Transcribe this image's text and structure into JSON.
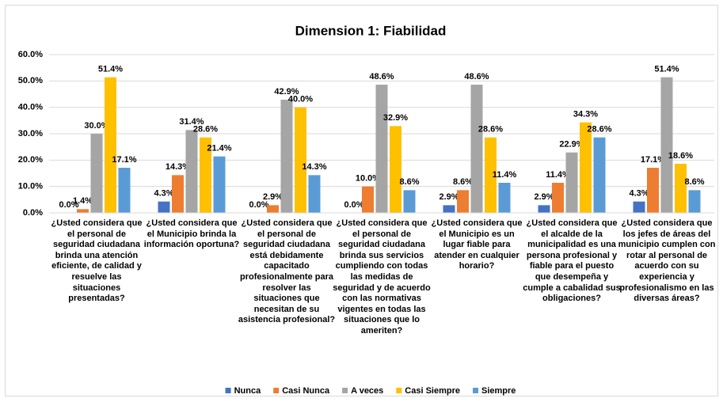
{
  "chart_data": {
    "type": "bar",
    "title": "Dimension 1: Fiabilidad",
    "categories": [
      "¿Usted considera que el personal de seguridad ciudadana brinda una atención eficiente, de calidad y resuelve las situaciones presentadas?",
      "¿Usted considera que el Municipio brinda la información oportuna?",
      "¿Usted considera que el personal de seguridad ciudadana está debidamente capacitado profesionalmente para resolver las situaciones que necesitan de su asistencia profesional?",
      "¿Usted considera que el personal de seguridad ciudadana brinda sus servicios cumpliendo con todas las medidas de seguridad y de acuerdo con las normativas vigentes en todas las situaciones que lo ameriten?",
      "¿Usted considera que el Municipio es un lugar fiable para atender en cualquier horario?",
      "¿Usted considera que el alcalde de la municipalidad es una persona profesional y fiable para el puesto que desempeña y cumple a cabalidad sus obligaciones?",
      "¿Usted considera que los jefes de áreas del municipio cumplen con rotar al personal de acuerdo con su experiencia y profesionalismo en las diversas áreas?"
    ],
    "series": [
      {
        "name": "Nunca",
        "color": "#4472c4",
        "values": [
          0.0,
          4.3,
          0.0,
          0.0,
          2.9,
          2.9,
          4.3
        ],
        "value_labels": [
          "0.0%",
          "4.3%",
          "0.0%",
          "0.0%",
          "2.9%",
          "2.9%",
          "4.3%"
        ]
      },
      {
        "name": "Casi Nunca",
        "color": "#ed7d31",
        "values": [
          1.4,
          14.3,
          2.9,
          10.0,
          8.6,
          11.4,
          17.1
        ],
        "value_labels": [
          "1.4%",
          "14.3%",
          "2.9%",
          "10.0%",
          "8.6%",
          "11.4%",
          "17.1%"
        ]
      },
      {
        "name": "A veces",
        "color": "#a5a5a5",
        "values": [
          30.0,
          31.4,
          42.9,
          48.6,
          48.6,
          22.9,
          51.4
        ],
        "value_labels": [
          "30.0%",
          "31.4%",
          "42.9%",
          "48.6%",
          "48.6%",
          "22.9%",
          "51.4%"
        ]
      },
      {
        "name": "Casi Siempre",
        "color": "#ffc000",
        "values": [
          51.4,
          28.6,
          40.0,
          32.9,
          28.6,
          34.3,
          18.6
        ],
        "value_labels": [
          "51.4%",
          "28.6%",
          "40.0%",
          "32.9%",
          "28.6%",
          "34.3%",
          "18.6%"
        ]
      },
      {
        "name": "Siempre",
        "color": "#5b9bd5",
        "values": [
          17.1,
          21.4,
          14.3,
          8.6,
          11.4,
          28.6,
          8.6
        ],
        "value_labels": [
          "17.1%",
          "21.4%",
          "14.3%",
          "8.6%",
          "11.4%",
          "28.6%",
          "8.6%"
        ]
      }
    ],
    "ylim": [
      0,
      60
    ],
    "yticks": [
      {
        "value": 0,
        "label": "0.0%"
      },
      {
        "value": 10,
        "label": "10.0%"
      },
      {
        "value": 20,
        "label": "20.0%"
      },
      {
        "value": 30,
        "label": "30.0%"
      },
      {
        "value": 40,
        "label": "40.0%"
      },
      {
        "value": 50,
        "label": "50.0%"
      },
      {
        "value": 60,
        "label": "60.0%"
      }
    ],
    "grid": true,
    "legend": "bottom"
  }
}
